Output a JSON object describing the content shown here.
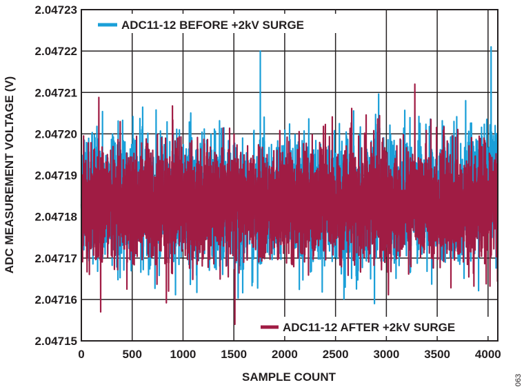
{
  "chart_data": {
    "type": "line",
    "title": "",
    "xlabel": "SAMPLE COUNT",
    "ylabel": "ADC MEASUREMENT VOLTAGE (V)",
    "xlim": [
      0,
      4096
    ],
    "ylim": [
      2.04715,
      2.04723
    ],
    "x_ticks": [
      "0",
      "500",
      "1000",
      "1500",
      "2000",
      "2500",
      "3000",
      "3500",
      "4000"
    ],
    "y_ticks": [
      "2.04715",
      "2.04716",
      "2.04717",
      "2.04718",
      "2.04719",
      "2.04720",
      "2.04721",
      "2.04722",
      "2.04723"
    ],
    "grid": true,
    "series": [
      {
        "name": "ADC11-12 BEFORE +2kV SURGE",
        "color": "#1a9fd8",
        "mean": 2.047184,
        "peak_to_peak_range": [
          2.047159,
          2.047221
        ],
        "sample_points": [
          [
            0,
            2.047182
          ],
          [
            250,
            2.047186
          ],
          [
            500,
            2.047183
          ],
          [
            750,
            2.047185
          ],
          [
            1000,
            2.047184
          ],
          [
            1250,
            2.047182
          ],
          [
            1500,
            2.047185
          ],
          [
            1760,
            2.04722
          ],
          [
            2000,
            2.047184
          ],
          [
            2250,
            2.047183
          ],
          [
            2500,
            2.047185
          ],
          [
            2750,
            2.047184
          ],
          [
            3000,
            2.047182
          ],
          [
            3250,
            2.047185
          ],
          [
            3500,
            2.047184
          ],
          [
            3750,
            2.047186
          ],
          [
            4030,
            2.047221
          ],
          [
            4096,
            2.04719
          ]
        ]
      },
      {
        "name": "ADC11-12 AFTER +2kV SURGE",
        "color": "#a01c44",
        "mean": 2.047183,
        "peak_to_peak_range": [
          2.047154,
          2.047212
        ],
        "sample_points": [
          [
            0,
            2.047183
          ],
          [
            190,
            2.047157
          ],
          [
            500,
            2.047186
          ],
          [
            750,
            2.047183
          ],
          [
            1000,
            2.047184
          ],
          [
            1250,
            2.047182
          ],
          [
            1510,
            2.047154
          ],
          [
            1750,
            2.047185
          ],
          [
            2000,
            2.047183
          ],
          [
            2250,
            2.047184
          ],
          [
            2500,
            2.047185
          ],
          [
            2750,
            2.047183
          ],
          [
            3000,
            2.047182
          ],
          [
            3280,
            2.047212
          ],
          [
            3500,
            2.047184
          ],
          [
            3750,
            2.047183
          ],
          [
            4096,
            2.047182
          ]
        ]
      }
    ],
    "legend": [
      {
        "label": "ADC11-12 BEFORE +2kV SURGE",
        "position": "top-left"
      },
      {
        "label": "ADC11-12 AFTER +2kV SURGE",
        "position": "bottom-right"
      }
    ],
    "figure_number": "063"
  }
}
